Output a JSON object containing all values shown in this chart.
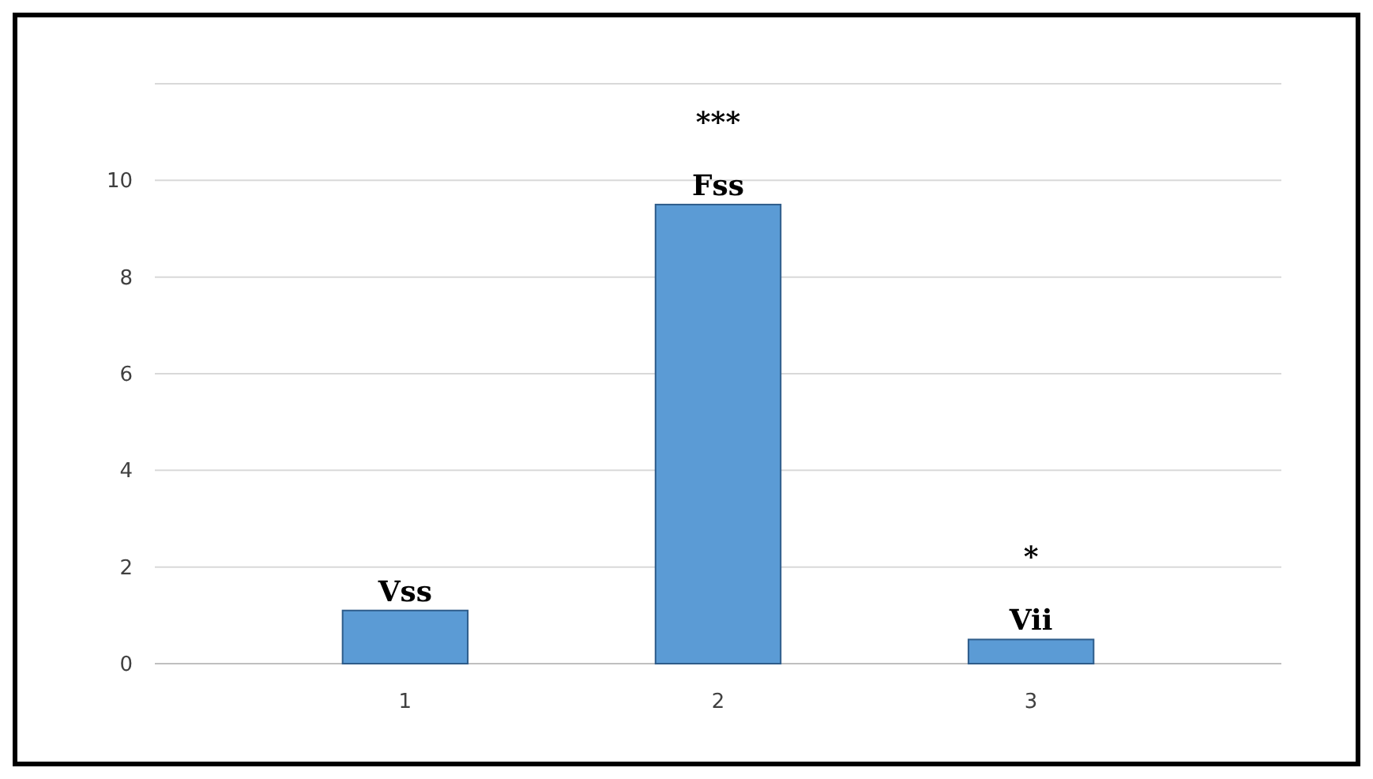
{
  "chart_data": {
    "type": "bar",
    "categories": [
      "1",
      "2",
      "3"
    ],
    "values": [
      1.1,
      9.5,
      0.5
    ],
    "color": "#5b9bd5",
    "ylim": [
      0,
      12
    ],
    "yticks": [
      0,
      2,
      4,
      6,
      8,
      10,
      {
        "value": 12,
        "label": null
      }
    ],
    "grid": "y",
    "annotations": [
      {
        "text": "Vss",
        "x": "1",
        "y": 1.1
      },
      {
        "text": "Fss",
        "x": "2",
        "y": 9.5
      },
      {
        "text": "***",
        "x": "2",
        "y": 9.5
      },
      {
        "text": "Vii",
        "x": "3",
        "y": 0.5
      },
      {
        "text": "*",
        "x": "3",
        "y": 0.5
      }
    ]
  }
}
